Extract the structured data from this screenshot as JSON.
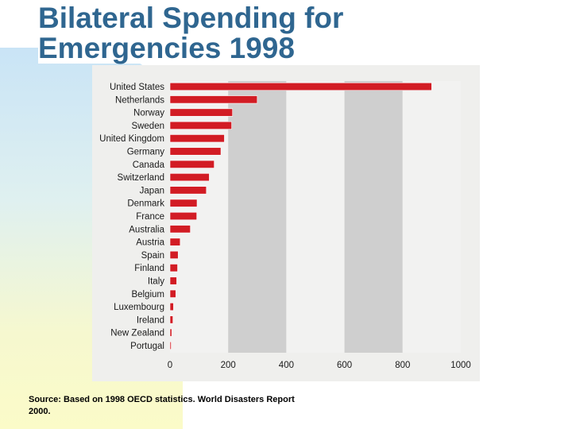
{
  "title": "Bilateral Spending for Emergencies 1998",
  "source": "Source: Based on 1998 OECD statistics. World Disasters Report 2000.",
  "colors": {
    "title": "#2f6690",
    "bar": "#d21c24",
    "band_light": "#f2f2f1",
    "band_dark": "#cfcfcf"
  },
  "chart_data": {
    "type": "bar",
    "orientation": "horizontal",
    "title": "",
    "xlabel": "",
    "ylabel": "",
    "xlim": [
      0,
      1000
    ],
    "xticks": [
      0,
      200,
      400,
      600,
      800,
      1000
    ],
    "categories": [
      "United States",
      "Netherlands",
      "Norway",
      "Sweden",
      "United Kingdom",
      "Germany",
      "Canada",
      "Switzerland",
      "Japan",
      "Denmark",
      "France",
      "Australia",
      "Austria",
      "Spain",
      "Finland",
      "Italy",
      "Belgium",
      "Luxembourg",
      "Ireland",
      "New Zealand",
      "Portugal"
    ],
    "values": [
      900,
      300,
      215,
      212,
      187,
      175,
      152,
      135,
      125,
      93,
      92,
      70,
      35,
      28,
      26,
      23,
      20,
      12,
      10,
      6,
      2
    ]
  }
}
